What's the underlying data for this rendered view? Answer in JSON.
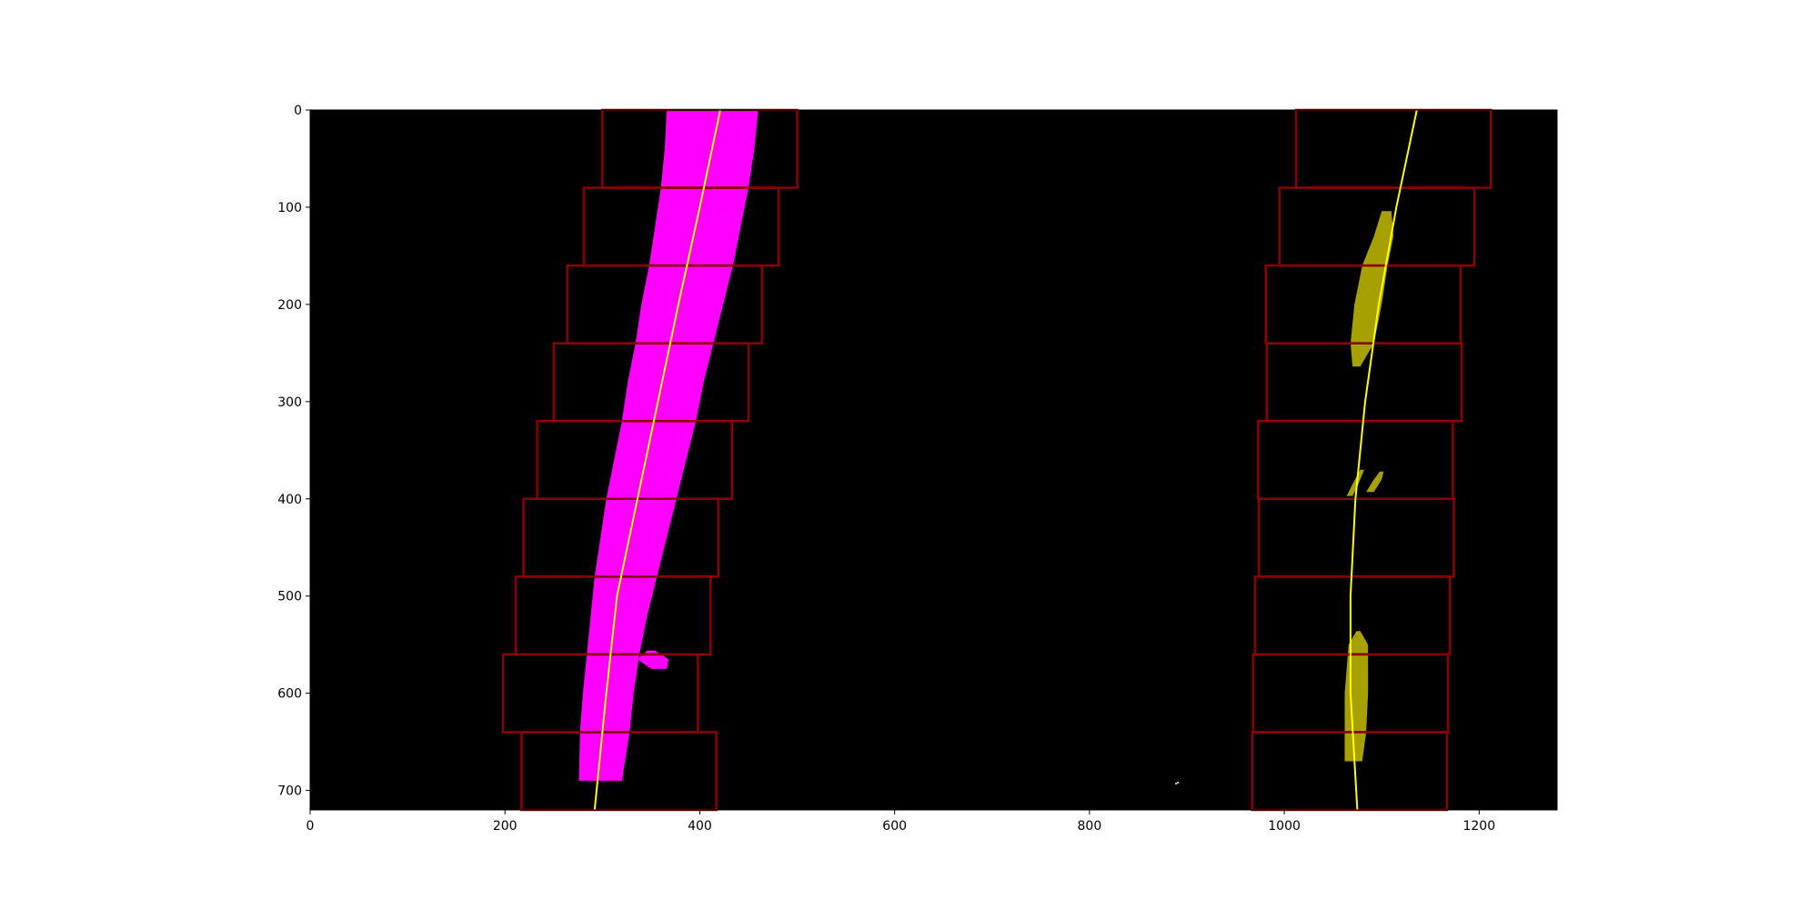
{
  "chart_data": {
    "type": "scatter",
    "title": "",
    "xlabel": "",
    "ylabel": "",
    "xlim": [
      0,
      1280
    ],
    "ylim": [
      720,
      0
    ],
    "y_inverted": true,
    "grid": false,
    "legend": "none",
    "background": "#000000",
    "x_ticks": [
      "0",
      "200",
      "400",
      "600",
      "800",
      "1000",
      "1200"
    ],
    "y_ticks": [
      "0",
      "100",
      "200",
      "300",
      "400",
      "500",
      "600",
      "700"
    ],
    "x_tick_values": [
      0,
      200,
      400,
      600,
      800,
      1000,
      1200
    ],
    "y_tick_values": [
      0,
      100,
      200,
      300,
      400,
      500,
      600,
      700
    ],
    "colors": {
      "left_lane_pixels": "#ff00ff",
      "right_lane_pixels": "#a6a000",
      "search_windows": "#8b0000",
      "fit_lines": "#ffff00"
    },
    "search_windows": {
      "left": [
        {
          "x_range": [
            300,
            500
          ],
          "y_range": [
            0,
            80
          ]
        },
        {
          "x_range": [
            281,
            481
          ],
          "y_range": [
            80,
            160
          ]
        },
        {
          "x_range": [
            264,
            464
          ],
          "y_range": [
            160,
            240
          ]
        },
        {
          "x_range": [
            250,
            450
          ],
          "y_range": [
            240,
            320
          ]
        },
        {
          "x_range": [
            233,
            433
          ],
          "y_range": [
            320,
            400
          ]
        },
        {
          "x_range": [
            219,
            419
          ],
          "y_range": [
            400,
            480
          ]
        },
        {
          "x_range": [
            211,
            411
          ],
          "y_range": [
            480,
            560
          ]
        },
        {
          "x_range": [
            198,
            398
          ],
          "y_range": [
            560,
            640
          ]
        },
        {
          "x_range": [
            217,
            417
          ],
          "y_range": [
            640,
            720
          ]
        }
      ],
      "right": [
        {
          "x_range": [
            1012,
            1212
          ],
          "y_range": [
            0,
            80
          ]
        },
        {
          "x_range": [
            995,
            1195
          ],
          "y_range": [
            80,
            160
          ]
        },
        {
          "x_range": [
            981,
            1181
          ],
          "y_range": [
            160,
            240
          ]
        },
        {
          "x_range": [
            982,
            1182
          ],
          "y_range": [
            240,
            320
          ]
        },
        {
          "x_range": [
            973,
            1173
          ],
          "y_range": [
            320,
            400
          ]
        },
        {
          "x_range": [
            974,
            1174
          ],
          "y_range": [
            400,
            480
          ]
        },
        {
          "x_range": [
            970,
            1170
          ],
          "y_range": [
            480,
            560
          ]
        },
        {
          "x_range": [
            968,
            1168
          ],
          "y_range": [
            560,
            640
          ]
        },
        {
          "x_range": [
            967,
            1167
          ],
          "y_range": [
            640,
            720
          ]
        }
      ]
    },
    "lane_pixels": {
      "left": [
        {
          "y": 0,
          "x_range": [
            366,
            460
          ]
        },
        {
          "y": 40,
          "x_range": [
            364,
            456
          ]
        },
        {
          "y": 80,
          "x_range": [
            360,
            450
          ]
        },
        {
          "y": 120,
          "x_range": [
            354,
            442
          ]
        },
        {
          "y": 160,
          "x_range": [
            348,
            434
          ]
        },
        {
          "y": 200,
          "x_range": [
            340,
            424
          ]
        },
        {
          "y": 240,
          "x_range": [
            334,
            414
          ]
        },
        {
          "y": 280,
          "x_range": [
            326,
            404
          ]
        },
        {
          "y": 320,
          "x_range": [
            320,
            396
          ]
        },
        {
          "y": 360,
          "x_range": [
            312,
            386
          ]
        },
        {
          "y": 400,
          "x_range": [
            304,
            376
          ]
        },
        {
          "y": 440,
          "x_range": [
            298,
            366
          ]
        },
        {
          "y": 480,
          "x_range": [
            292,
            356
          ]
        },
        {
          "y": 520,
          "x_range": [
            288,
            346
          ]
        },
        {
          "y": 560,
          "x_range": [
            284,
            338
          ]
        },
        {
          "y": 600,
          "x_range": [
            280,
            332
          ]
        },
        {
          "y": 640,
          "x_range": [
            277,
            328
          ]
        },
        {
          "y": 690,
          "x_range": [
            276,
            320
          ]
        }
      ],
      "left_blob": [
        {
          "y": 556,
          "x_range": [
            346,
            354
          ]
        },
        {
          "y": 565,
          "x_range": [
            336,
            368
          ]
        },
        {
          "y": 575,
          "x_range": [
            350,
            366
          ]
        }
      ],
      "right_segments": [
        [
          {
            "y": 104,
            "x_range": [
              1100,
              1110
            ]
          },
          {
            "y": 130,
            "x_range": [
              1092,
              1112
            ]
          },
          {
            "y": 160,
            "x_range": [
              1080,
              1106
            ]
          },
          {
            "y": 200,
            "x_range": [
              1072,
              1100
            ]
          },
          {
            "y": 240,
            "x_range": [
              1068,
              1092
            ]
          },
          {
            "y": 264,
            "x_range": [
              1070,
              1078
            ]
          }
        ],
        [
          {
            "y": 370,
            "x_range": [
              1078,
              1082
            ]
          },
          {
            "y": 385,
            "x_range": [
              1070,
              1076
            ]
          },
          {
            "y": 397,
            "x_range": [
              1064,
              1070
            ]
          }
        ],
        [
          {
            "y": 372,
            "x_range": [
              1098,
              1102
            ]
          },
          {
            "y": 380,
            "x_range": [
              1092,
              1100
            ]
          },
          {
            "y": 393,
            "x_range": [
              1084,
              1092
            ]
          }
        ],
        [
          {
            "y": 536,
            "x_range": [
              1074,
              1078
            ]
          },
          {
            "y": 550,
            "x_range": [
              1066,
              1086
            ]
          },
          {
            "y": 600,
            "x_range": [
              1062,
              1086
            ]
          },
          {
            "y": 640,
            "x_range": [
              1062,
              1084
            ]
          },
          {
            "y": 670,
            "x_range": [
              1062,
              1080
            ]
          }
        ]
      ],
      "specks": [
        {
          "x": 888,
          "y": 692
        },
        {
          "x": 890,
          "y": 691
        }
      ]
    },
    "fit_lines": {
      "left": [
        {
          "x": 421,
          "y": 0
        },
        {
          "x": 400,
          "y": 100
        },
        {
          "x": 378,
          "y": 200
        },
        {
          "x": 357,
          "y": 300
        },
        {
          "x": 336,
          "y": 400
        },
        {
          "x": 315,
          "y": 500
        },
        {
          "x": 304,
          "y": 600
        },
        {
          "x": 292,
          "y": 720
        }
      ],
      "right": [
        {
          "x": 1136,
          "y": 0
        },
        {
          "x": 1115,
          "y": 100
        },
        {
          "x": 1097,
          "y": 200
        },
        {
          "x": 1083,
          "y": 300
        },
        {
          "x": 1073,
          "y": 400
        },
        {
          "x": 1068,
          "y": 500
        },
        {
          "x": 1068,
          "y": 600
        },
        {
          "x": 1075,
          "y": 720
        }
      ]
    }
  }
}
